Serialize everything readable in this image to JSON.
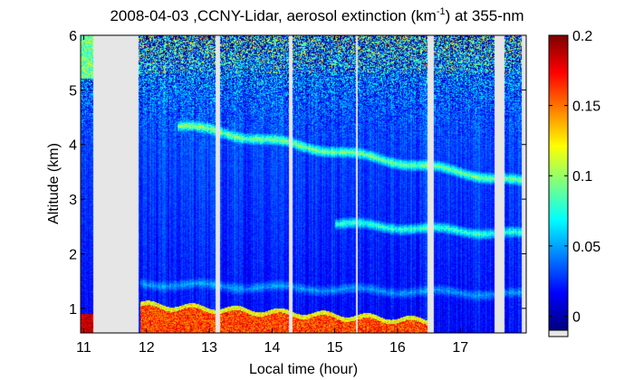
{
  "chart_data": {
    "type": "heatmap",
    "title_text": "2008-04-03 ,CCNY-Lidar, aerosol extinction (km",
    "title_sup": "-1",
    "title_end": ") at 355-nm",
    "xlabel": "Local time (hour)",
    "ylabel": "Altitude (km)",
    "xlim": [
      10.95,
      18.05
    ],
    "ylim": [
      0.55,
      6.0
    ],
    "xticks": [
      11,
      12,
      13,
      14,
      15,
      16,
      17
    ],
    "xtick_labels": [
      "11",
      "12",
      "13",
      "14",
      "15",
      "16",
      "17"
    ],
    "yticks": [
      1,
      2,
      3,
      4,
      5,
      6
    ],
    "ytick_labels": [
      "1",
      "2",
      "3",
      "4",
      "5",
      "6"
    ],
    "colorbar": {
      "range": [
        -0.01,
        0.2
      ],
      "ticks": [
        0,
        0.05,
        0.1,
        0.15,
        0.2
      ],
      "tick_labels": [
        "0",
        "0.05",
        "0.1",
        "0.15",
        "0.2"
      ],
      "colormap": "jet",
      "nodata_color": "#e6e6e6"
    },
    "nodata_gaps": [
      [
        11.15,
        11.88
      ],
      [
        13.1,
        13.17
      ],
      [
        14.27,
        14.32
      ],
      [
        15.33,
        15.36
      ],
      [
        16.47,
        16.58
      ],
      [
        17.55,
        17.7
      ],
      [
        17.98,
        18.05
      ]
    ],
    "features": [
      {
        "name": "boundary-layer",
        "from_time": 11.9,
        "to_time": 16.5,
        "altitude_top": [
          1.1,
          0.8
        ],
        "value": 0.16
      },
      {
        "name": "residual-layer",
        "from_time": 11.9,
        "to_time": 18.0,
        "altitude": [
          1.45,
          1.25
        ],
        "value": 0.06
      },
      {
        "name": "elevated-layer-upper",
        "from_time": 12.5,
        "to_time": 18.0,
        "altitude": [
          4.35,
          3.3
        ],
        "value": 0.1
      },
      {
        "name": "elevated-layer-lower",
        "from_time": 15.0,
        "to_time": 18.0,
        "altitude": [
          2.55,
          2.35
        ],
        "value": 0.09
      }
    ]
  }
}
